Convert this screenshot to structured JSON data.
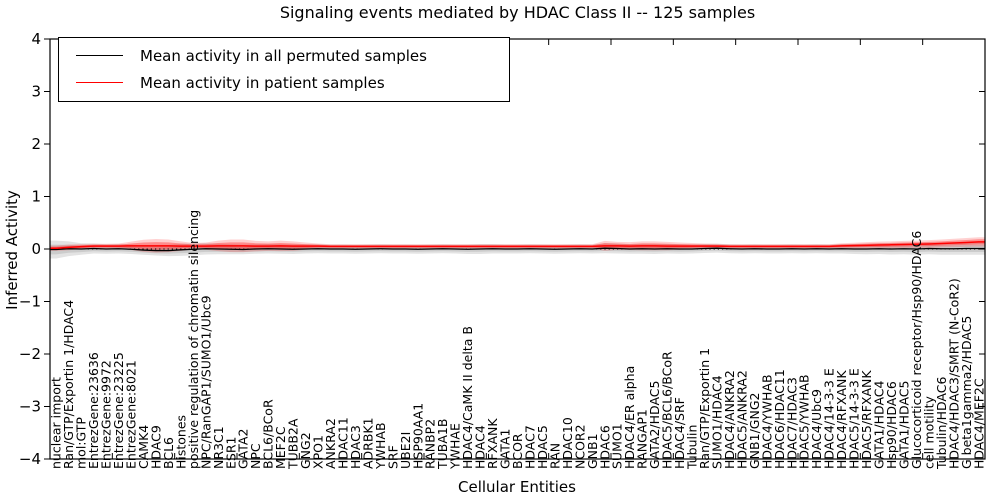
{
  "colors": {
    "permuted_line": "#000000",
    "permuted_band": "#999999",
    "patient_line": "#ff0000",
    "patient_band": "#ff0000",
    "frame": "#000000",
    "background": "#ffffff"
  },
  "chart_data": {
    "type": "line",
    "title": "Signaling events mediated by HDAC Class II -- 125 samples",
    "xlabel": "Cellular Entities",
    "ylabel": "Inferred Activity",
    "ylim": [
      -4,
      4
    ],
    "yticks": [
      -4,
      -3,
      -2,
      -1,
      0,
      1,
      2,
      3,
      4
    ],
    "x_major_tick_every": 5,
    "grid": false,
    "legend_position": "upper left",
    "zero_line": {
      "y": 0,
      "style": "dashed",
      "color": "#000000"
    },
    "categories": [
      "nuclear import",
      "Ran/GTP/Exportin 1/HDAC4",
      "mol:GTP",
      "EntrezGene:23636",
      "EntrezGene:9972",
      "EntrezGene:23225",
      "EntrezGene:8021",
      "CAMK4",
      "HDAC9",
      "BCL6",
      "Histones",
      "positive regulation of chromatin silencing",
      "NPC/RanGAP1/SUMO1/Ubc9",
      "NR3C1",
      "ESR1",
      "GATA2",
      "NPC",
      "BCL6/BCoR",
      "MEF2C",
      "TUBB2A",
      "GNG2",
      "XPO1",
      "ANKRA2",
      "HDAC11",
      "HDAC3",
      "ADRBK1",
      "YWHAB",
      "SRF",
      "UBE2I",
      "HSP90AA1",
      "RANBP2",
      "TUBA1B",
      "YWHAE",
      "HDAC4/CaMK II delta B",
      "HDAC4",
      "RFXANK",
      "GATA1",
      "BCOR",
      "HDAC7",
      "HDAC5",
      "RAN",
      "HDAC10",
      "NCOR2",
      "GNB1",
      "HDAC6",
      "SUMO1",
      "HDAC4/ER alpha",
      "RANGAP1",
      "GATA2/HDAC5",
      "HDAC5/BCL6/BCoR",
      "HDAC4/SRF",
      "Tubulin",
      "Ran/GTP/Exportin 1",
      "SUMO1/HDAC4",
      "HDAC4/ANKRA2",
      "HDAC5/ANKRA2",
      "GNB1/GNG2",
      "HDAC4/YWHAB",
      "HDAC6/HDAC11",
      "HDAC7/HDAC3",
      "HDAC5/YWHAB",
      "HDAC4/Ubc9",
      "HDAC4/14-3-3 E",
      "HDAC4/RFXANK",
      "HDAC5/14-3-3 E",
      "HDAC5/RFXANK",
      "GATA1/HDAC4",
      "Hsp90/HDAC6",
      "GATA1/HDAC5",
      "Glucocorticoid receptor/Hsp90/HDAC6",
      "cell motility",
      "Tubulin/HDAC6",
      "HDAC4/HDAC3/SMRT (N-CoR2)",
      "G beta1gamma2/HDAC5",
      "HDAC4/MEF2C"
    ],
    "series": [
      {
        "name": "Mean activity in all permuted samples",
        "color": "#000000",
        "band_color": "#999999",
        "values": [
          -0.01,
          0.005,
          0,
          0.01,
          0,
          0.005,
          -0.005,
          -0.02,
          -0.03,
          -0.03,
          -0.015,
          -0.005,
          0.005,
          0,
          -0.005,
          -0.01,
          0,
          0.005,
          0,
          -0.005,
          0,
          0.005,
          0,
          0,
          -0.005,
          0,
          0.005,
          0,
          0,
          -0.005,
          0,
          0.005,
          0,
          -0.005,
          0,
          0.005,
          0,
          0,
          0.005,
          0,
          -0.005,
          0,
          0.005,
          0,
          0.015,
          0.01,
          0,
          0.005,
          0,
          0.005,
          0,
          0,
          0.01,
          0.015,
          0.005,
          0,
          0.005,
          0,
          0,
          0.005,
          0,
          0.005,
          0,
          0.005,
          0,
          0,
          0.005,
          0,
          0.005,
          0,
          0.01,
          0.005,
          0.005,
          0.01,
          0.01
        ],
        "band_halfwidth": [
          0.17,
          0.14,
          0.11,
          0.095,
          0.09,
          0.09,
          0.09,
          0.09,
          0.095,
          0.105,
          0.115,
          0.115,
          0.11,
          0.1,
          0.095,
          0.09,
          0.09,
          0.09,
          0.09,
          0.09,
          0.085,
          0.085,
          0.085,
          0.085,
          0.085,
          0.085,
          0.085,
          0.085,
          0.085,
          0.085,
          0.085,
          0.085,
          0.085,
          0.09,
          0.095,
          0.09,
          0.085,
          0.085,
          0.085,
          0.085,
          0.085,
          0.085,
          0.085,
          0.085,
          0.095,
          0.095,
          0.09,
          0.095,
          0.095,
          0.09,
          0.09,
          0.085,
          0.085,
          0.085,
          0.085,
          0.085,
          0.085,
          0.085,
          0.085,
          0.085,
          0.085,
          0.085,
          0.085,
          0.09,
          0.095,
          0.1,
          0.1,
          0.105,
          0.105,
          0.11,
          0.11,
          0.115,
          0.115,
          0.12,
          0.12
        ]
      },
      {
        "name": "Mean activity in patient samples",
        "color": "#ff0000",
        "band_color": "#ff0000",
        "values": [
          0.015,
          0.03,
          0.045,
          0.055,
          0.055,
          0.055,
          0.06,
          0.06,
          0.06,
          0.06,
          0.055,
          0.055,
          0.055,
          0.06,
          0.06,
          0.06,
          0.055,
          0.055,
          0.06,
          0.055,
          0.055,
          0.055,
          0.05,
          0.05,
          0.05,
          0.05,
          0.05,
          0.05,
          0.05,
          0.05,
          0.05,
          0.05,
          0.05,
          0.05,
          0.05,
          0.05,
          0.05,
          0.05,
          0.05,
          0.05,
          0.05,
          0.05,
          0.05,
          0.05,
          0.06,
          0.06,
          0.055,
          0.06,
          0.06,
          0.055,
          0.055,
          0.055,
          0.055,
          0.055,
          0.05,
          0.05,
          0.05,
          0.05,
          0.05,
          0.05,
          0.05,
          0.05,
          0.05,
          0.06,
          0.065,
          0.07,
          0.075,
          0.08,
          0.085,
          0.09,
          0.095,
          0.105,
          0.115,
          0.125,
          0.135
        ],
        "band_halfwidth": [
          0.05,
          0.055,
          0.05,
          0.045,
          0.045,
          0.05,
          0.08,
          0.115,
          0.13,
          0.12,
          0.09,
          0.06,
          0.07,
          0.1,
          0.12,
          0.12,
          0.1,
          0.09,
          0.1,
          0.09,
          0.07,
          0.05,
          0.04,
          0.04,
          0.04,
          0.04,
          0.04,
          0.04,
          0.04,
          0.04,
          0.04,
          0.04,
          0.04,
          0.04,
          0.04,
          0.04,
          0.04,
          0.04,
          0.04,
          0.04,
          0.04,
          0.04,
          0.04,
          0.04,
          0.095,
          0.075,
          0.075,
          0.085,
          0.085,
          0.08,
          0.07,
          0.06,
          0.05,
          0.045,
          0.04,
          0.04,
          0.04,
          0.04,
          0.04,
          0.04,
          0.04,
          0.04,
          0.04,
          0.05,
          0.055,
          0.06,
          0.065,
          0.065,
          0.07,
          0.07,
          0.075,
          0.075,
          0.08,
          0.085,
          0.09
        ]
      }
    ]
  }
}
